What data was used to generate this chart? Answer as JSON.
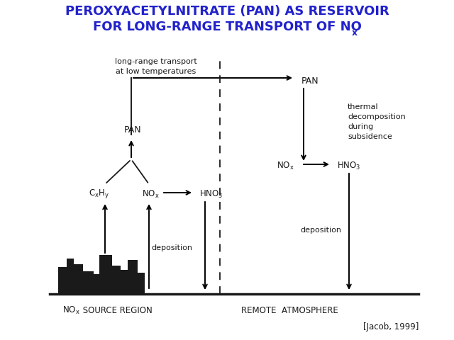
{
  "title_line1": "PEROXYACETYLNITRATE (PAN) AS RESERVOIR",
  "title_line2": "FOR LONG-RANGE TRANSPORT OF NO",
  "title_sub": "x",
  "title_color": "#2222cc",
  "title_fontsize": 13,
  "bg_color": "#ffffff",
  "diagram_color": "#1a1a1a",
  "ref_text": "[Jacob, 1999]",
  "label_remote": "REMOTE  ATMOSPHERE"
}
